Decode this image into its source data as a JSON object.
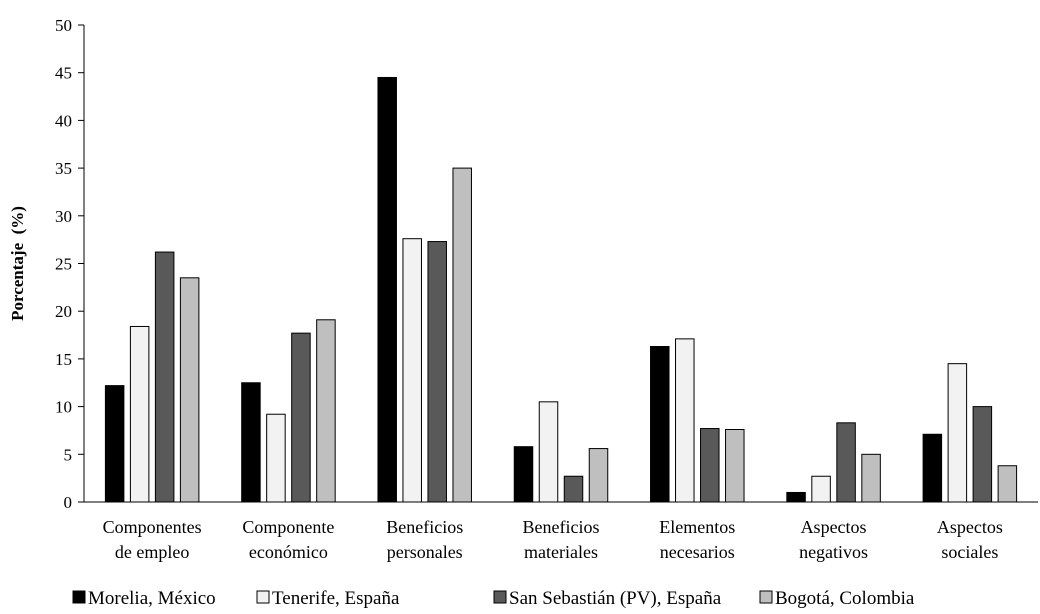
{
  "chart_data": {
    "type": "bar",
    "title": "",
    "xlabel": "",
    "ylabel": "Porcentaje  (%)",
    "ylim": [
      0,
      50
    ],
    "yticks": [
      0,
      5,
      10,
      15,
      20,
      25,
      30,
      35,
      40,
      45,
      50
    ],
    "grid": false,
    "legend_position": "bottom",
    "categories": [
      [
        "Componentes",
        "de empleo"
      ],
      [
        "Componente",
        "económico"
      ],
      [
        "Beneficios",
        "personales"
      ],
      [
        "Beneficios",
        "materiales"
      ],
      [
        "Elementos",
        "necesarios"
      ],
      [
        "Aspectos",
        "negativos"
      ],
      [
        "Aspectos",
        "sociales"
      ]
    ],
    "series": [
      {
        "name": "Morelia, México",
        "color": "#000000",
        "values": [
          12.2,
          12.5,
          44.5,
          5.8,
          16.3,
          1.0,
          7.1
        ]
      },
      {
        "name": "Tenerife, España",
        "color": "#f2f2f2",
        "values": [
          18.4,
          9.2,
          27.6,
          10.5,
          17.1,
          2.7,
          14.5
        ]
      },
      {
        "name": "San Sebastián (PV), España",
        "color": "#595959",
        "values": [
          26.2,
          17.7,
          27.3,
          2.7,
          7.7,
          8.3,
          10.0
        ]
      },
      {
        "name": "Bogotá, Colombia",
        "color": "#bfbfbf",
        "values": [
          23.5,
          19.1,
          35.0,
          5.6,
          7.6,
          5.0,
          3.8
        ]
      }
    ]
  }
}
